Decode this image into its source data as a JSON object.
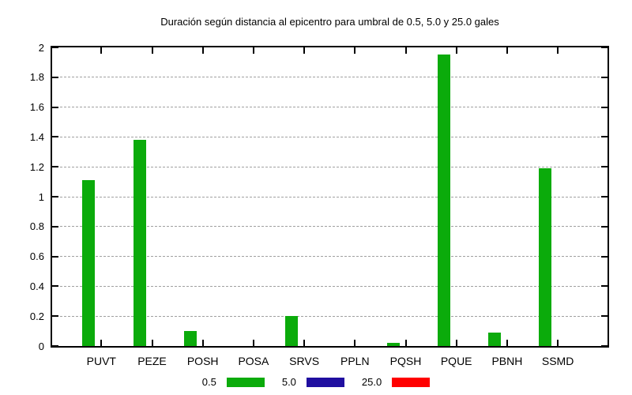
{
  "title": "Duración según distancia al epicentro para umbral de 0.5, 5.0 y 25.0 gales",
  "colors": {
    "bar_green": "#0bab0b",
    "bar_blue": "#200fa0",
    "bar_red": "#ff0000",
    "grid": "#a0a0a0",
    "axis": "#000000",
    "background": "#ffffff"
  },
  "legend": [
    {
      "label": "0.5",
      "color": "#0bab0b"
    },
    {
      "label": "5.0",
      "color": "#200fa0"
    },
    {
      "label": "25.0",
      "color": "#ff0000"
    }
  ],
  "chart_data": {
    "type": "bar",
    "title": "Duración según distancia al epicentro para umbral de 0.5, 5.0 y 25.0 gales",
    "categories": [
      "PUVT",
      "PEZE",
      "POSH",
      "POSA",
      "SRVS",
      "PPLN",
      "PQSH",
      "PQUE",
      "PBNH",
      "SSMD"
    ],
    "series": [
      {
        "name": "0.5",
        "color": "#0bab0b",
        "values": [
          1.11,
          1.38,
          0.1,
          0,
          0.2,
          0,
          0.02,
          1.95,
          0.09,
          1.19
        ]
      },
      {
        "name": "5.0",
        "color": "#200fa0",
        "values": [
          0,
          0,
          0,
          0,
          0,
          0,
          0,
          0,
          0,
          0
        ]
      },
      {
        "name": "25.0",
        "color": "#ff0000",
        "values": [
          0,
          0,
          0,
          0,
          0,
          0,
          0,
          0,
          0,
          0
        ]
      }
    ],
    "xlabel": "",
    "ylabel": "",
    "ylim": [
      0,
      2
    ],
    "ytick_step": 0.2,
    "ytick_labels": [
      "0",
      "0.2",
      "0.4",
      "0.6",
      "0.8",
      "1",
      "1.2",
      "1.4",
      "1.6",
      "1.8",
      "2"
    ],
    "grid": true,
    "grid_style": "dashed",
    "legend_position": "bottom"
  }
}
